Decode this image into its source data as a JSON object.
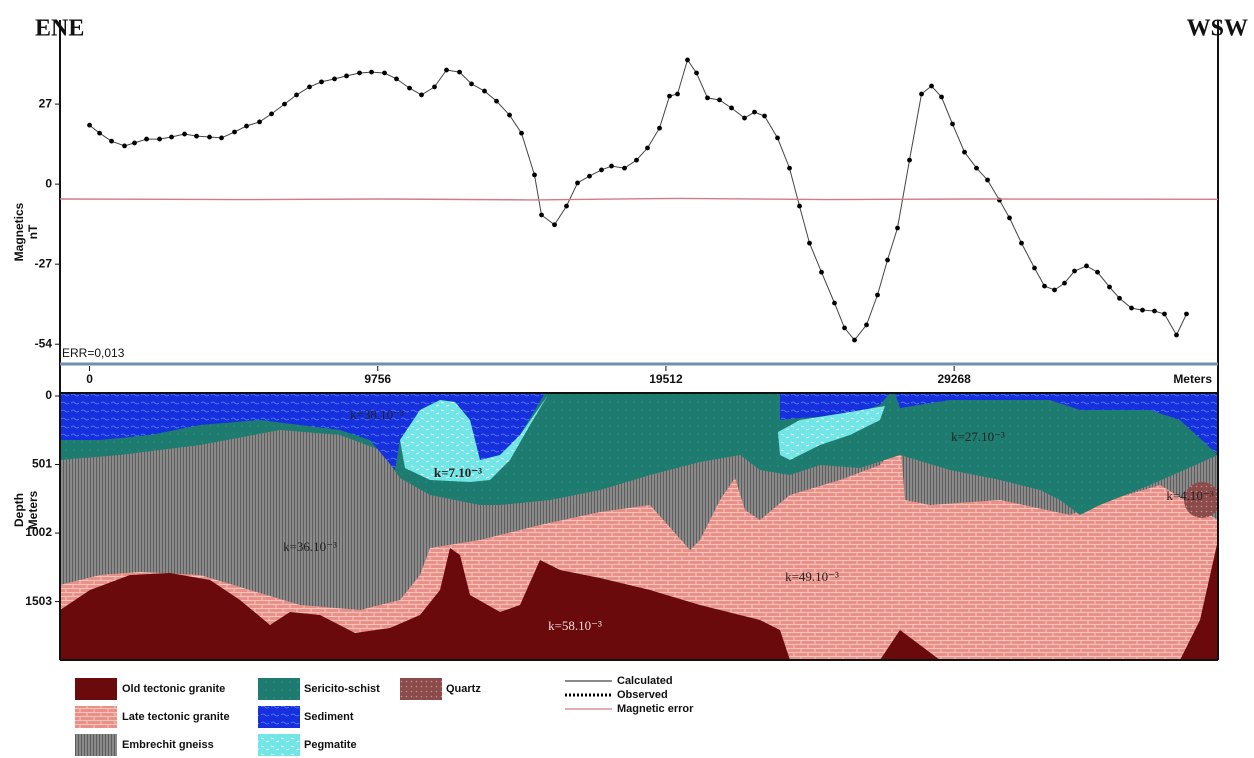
{
  "header": {
    "left": "ENE",
    "right": "WSW"
  },
  "chart_data": [
    {
      "type": "line",
      "y_label": "Magnetics",
      "y_unit": "nT",
      "annotation": "ERR=0,013",
      "xlim": [
        -1000,
        38200
      ],
      "ylim": [
        -60,
        52
      ],
      "yticks": [
        -54,
        -27,
        0,
        27
      ],
      "series": [
        {
          "name": "Calculated",
          "color": "#444444",
          "x": [
            0,
            339,
            745,
            1185,
            1523,
            1930,
            2370,
            2776,
            3216,
            3622,
            4062,
            4468,
            4908,
            5314,
            5755,
            6161,
            6601,
            7007,
            7447,
            7853,
            8293,
            8699,
            9140,
            9546,
            9986,
            10392,
            10832,
            11238,
            11678,
            12084,
            12525,
            12931,
            13371,
            13777,
            14217,
            14623,
            15063,
            15300,
            15740,
            16146,
            16519,
            16925,
            17331,
            17670,
            18110,
            18516,
            18888,
            19294,
            19633,
            19904,
            20242,
            20547,
            20919,
            21326,
            21732,
            22172,
            22510,
            22849,
            23289,
            23695,
            24034,
            24372,
            24778,
            25218,
            25557,
            25896,
            26302,
            26674,
            27013,
            27351,
            27757,
            28164,
            28502,
            28841,
            29213,
            29619,
            30025,
            30398,
            30804,
            31142,
            31548,
            31988,
            32327,
            32666,
            33004,
            33343,
            33749,
            34121,
            34527,
            34866,
            35272,
            35644,
            36050,
            36388,
            36795,
            37133
          ],
          "values": [
            19.9,
            17.2,
            14.5,
            12.9,
            13.9,
            15.2,
            15.2,
            15.9,
            16.9,
            16.2,
            15.9,
            15.6,
            17.6,
            19.6,
            21.0,
            23.7,
            27.0,
            30.1,
            32.8,
            34.5,
            35.5,
            36.5,
            37.5,
            37.8,
            37.5,
            35.5,
            32.4,
            30.1,
            32.8,
            38.5,
            37.8,
            33.8,
            31.4,
            28.0,
            23.3,
            17.2,
            3.1,
            -10.4,
            -13.7,
            -7.4,
            0.4,
            2.7,
            4.8,
            6.1,
            5.4,
            8.1,
            12.2,
            18.9,
            29.7,
            30.4,
            41.9,
            37.5,
            29.1,
            28.4,
            25.7,
            22.3,
            24.3,
            23.0,
            15.6,
            5.4,
            -7.4,
            -19.9,
            -29.7,
            -40.1,
            -48.5,
            -52.6,
            -47.5,
            -37.4,
            -25.6,
            -14.8,
            8.1,
            30.4,
            33.1,
            29.4,
            20.3,
            10.8,
            5.4,
            1.4,
            -5.4,
            -11.4,
            -19.9,
            -28.3,
            -34.4,
            -35.7,
            -33.4,
            -29.3,
            -27.6,
            -29.7,
            -34.7,
            -38.5,
            -41.8,
            -42.5,
            -42.8,
            -43.8,
            -50.9,
            -43.8
          ]
        },
        {
          "name": "Observed",
          "color": "#000000",
          "x": [
            0,
            339,
            745,
            1185,
            1523,
            1930,
            2370,
            2776,
            3216,
            3622,
            4062,
            4468,
            4908,
            5314,
            5755,
            6161,
            6601,
            7007,
            7447,
            7853,
            8293,
            8699,
            9140,
            9546,
            9986,
            10392,
            10832,
            11238,
            11678,
            12084,
            12525,
            12931,
            13371,
            13777,
            14217,
            14623,
            15063,
            15300,
            15740,
            16146,
            16519,
            16925,
            17331,
            17670,
            18110,
            18516,
            18888,
            19294,
            19633,
            19904,
            20242,
            20547,
            20919,
            21326,
            21732,
            22172,
            22510,
            22849,
            23289,
            23695,
            24034,
            24372,
            24778,
            25218,
            25557,
            25896,
            26302,
            26674,
            27013,
            27351,
            27757,
            28164,
            28502,
            28841,
            29213,
            29619,
            30025,
            30398,
            30804,
            31142,
            31548,
            31988,
            32327,
            32666,
            33004,
            33343,
            33749,
            34121,
            34527,
            34866,
            35272,
            35644,
            36050,
            36388,
            36795,
            37133
          ],
          "values": [
            19.9,
            17.2,
            14.5,
            12.9,
            13.9,
            15.2,
            15.2,
            15.9,
            16.9,
            16.2,
            15.9,
            15.6,
            17.6,
            19.6,
            21.0,
            23.7,
            27.0,
            30.1,
            32.8,
            34.5,
            35.5,
            36.5,
            37.5,
            37.8,
            37.5,
            35.5,
            32.4,
            30.1,
            32.8,
            38.5,
            37.8,
            33.8,
            31.4,
            28.0,
            23.3,
            17.2,
            3.1,
            -10.4,
            -13.7,
            -7.4,
            0.4,
            2.7,
            4.8,
            6.1,
            5.4,
            8.1,
            12.2,
            18.9,
            29.7,
            30.4,
            41.9,
            37.5,
            29.1,
            28.4,
            25.7,
            22.3,
            24.3,
            23.0,
            15.6,
            5.4,
            -7.4,
            -19.9,
            -29.7,
            -40.1,
            -48.5,
            -52.6,
            -47.5,
            -37.4,
            -25.6,
            -14.8,
            8.1,
            30.4,
            33.1,
            29.4,
            20.3,
            10.8,
            5.4,
            1.4,
            -5.4,
            -11.4,
            -19.9,
            -28.3,
            -34.4,
            -35.7,
            -33.4,
            -29.3,
            -27.6,
            -29.7,
            -34.7,
            -38.5,
            -41.8,
            -42.5,
            -42.8,
            -43.8,
            -50.9,
            -43.8
          ]
        },
        {
          "name": "Magnetic error",
          "color": "#d47a86",
          "x": [
            -1000,
            5000,
            10000,
            15000,
            20000,
            25000,
            30000,
            38200
          ],
          "values": [
            -5,
            -5.2,
            -5,
            -5.3,
            -4.8,
            -5.2,
            -5,
            -5.1
          ]
        }
      ]
    },
    {
      "type": "section",
      "x_label": "Meters",
      "y_label": "Depth",
      "y_unit": "Meters",
      "xlim": [
        -1000,
        38200
      ],
      "xticks": [
        0,
        9756,
        19512,
        29268
      ],
      "ylim": [
        0,
        1930
      ],
      "yticks": [
        0,
        501,
        1002,
        1503
      ],
      "units": [
        {
          "name": "Old tectonic granite",
          "color": "#6a0a0c"
        },
        {
          "name": "Late tectonic granite",
          "color": "#e99088"
        },
        {
          "name": "Embrechit gneiss",
          "color": "#8a8a8a"
        },
        {
          "name": "Sericito-schist",
          "color": "#1e7b6f"
        },
        {
          "name": "Sediment",
          "color": "#1530dc"
        },
        {
          "name": "Pegmatite",
          "color": "#72e6e6"
        },
        {
          "name": "Quartz",
          "color": "#8b4b4b"
        }
      ],
      "labels": [
        "k=38.10⁻³",
        "k=7.10⁻³",
        "k=27.10⁻³",
        "k=4.10⁻³",
        "k=36.10⁻³",
        "k=49.10⁻³",
        "k=58.10⁻³"
      ]
    }
  ]
}
